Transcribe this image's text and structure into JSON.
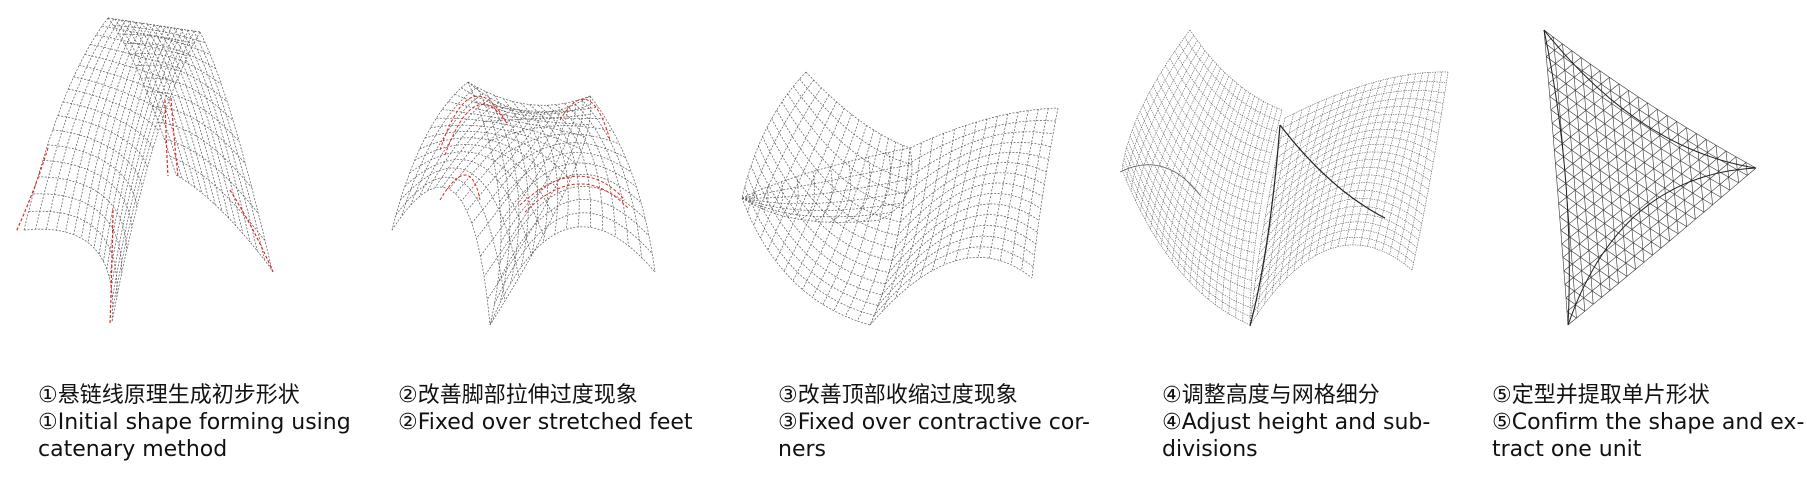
{
  "steps": [
    {
      "zh": "①悬链线原理生成初步形状",
      "en_lines": [
        "①Initial shape forming using",
        "catenary method"
      ]
    },
    {
      "zh": "②改善脚部拉伸过度现象",
      "en_lines": [
        "②Fixed over stretched feet"
      ]
    },
    {
      "zh": "③改善顶部收缩过度现象",
      "en_lines": [
        "③Fixed over contractive cor-",
        "ners"
      ]
    },
    {
      "zh": "④调整高度与网格细分",
      "en_lines": [
        "④Adjust height and sub-",
        "divisions"
      ]
    },
    {
      "zh": "⑤定型并提取单片形状",
      "en_lines": [
        "⑤Confirm the shape and ex-",
        "tract one unit"
      ]
    }
  ],
  "colors": {
    "mesh": "#5a5a5a",
    "highlight": "#e8231f"
  }
}
